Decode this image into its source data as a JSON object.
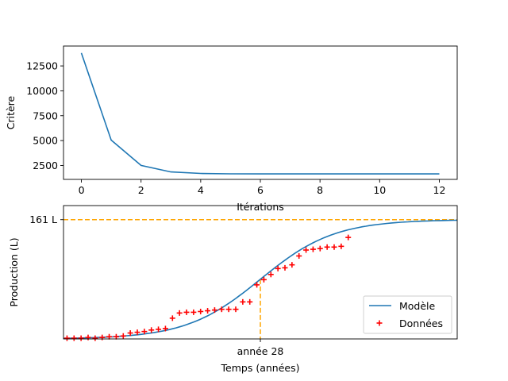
{
  "chart_data": [
    {
      "type": "line",
      "title": "",
      "xlabel": "Itérations",
      "ylabel": "Critère",
      "xlim": [
        -0.6,
        12.6
      ],
      "ylim": [
        1100,
        14500
      ],
      "xticks": [
        "0",
        "2",
        "4",
        "6",
        "8",
        "10",
        "12"
      ],
      "yticks": [
        "2500",
        "5000",
        "7500",
        "10000",
        "12500"
      ],
      "grid": false,
      "series": [
        {
          "color": "#1f77b4",
          "x": [
            0,
            1,
            2,
            3,
            4,
            5,
            6,
            7,
            8,
            9,
            10,
            11,
            12
          ],
          "y": [
            13800,
            5050,
            2500,
            1850,
            1700,
            1660,
            1650,
            1650,
            1650,
            1650,
            1650,
            1650,
            1650
          ]
        }
      ]
    },
    {
      "type": "scatter",
      "title": "",
      "xlabel": "Temps (années)",
      "ylabel": "Production (L)",
      "xlim": [
        0,
        56
      ],
      "ylim": [
        0,
        180
      ],
      "xtick_label": "année 28",
      "xtick_value": 28,
      "ytick_label": "161 L",
      "ytick_value": 161,
      "grid": false,
      "legend": "lower-right",
      "model": {
        "name": "Modèle",
        "color": "#1f77b4",
        "K": 161,
        "r": 0.19,
        "t0": 28,
        "x_end": 56
      },
      "data_series": {
        "name": "Données",
        "color": "#ff0000",
        "marker": "+",
        "x": [
          0.5,
          1.5,
          2.5,
          3.5,
          4.5,
          5.5,
          6.5,
          7.5,
          8.5,
          9.5,
          10.5,
          11.5,
          12.5,
          13.5,
          14.5,
          15.5,
          16.5,
          17.5,
          18.5,
          19.5,
          20.5,
          21.5,
          22.5,
          23.5,
          24.5,
          25.5,
          26.5,
          27.5,
          28.5,
          29.5,
          30.5,
          31.5,
          32.5,
          33.5,
          34.5,
          35.5,
          36.5,
          37.5,
          38.5,
          39.5,
          40.5
        ],
        "y": [
          1,
          1,
          1,
          2,
          1,
          2,
          3,
          3,
          4,
          8,
          9,
          10,
          12,
          13,
          14,
          28,
          35,
          36,
          36,
          37,
          38,
          39,
          40,
          40,
          40,
          50,
          50,
          73,
          80,
          87,
          95,
          96,
          100,
          112,
          120,
          121,
          122,
          124,
          124,
          125,
          137
        ]
      }
    }
  ]
}
